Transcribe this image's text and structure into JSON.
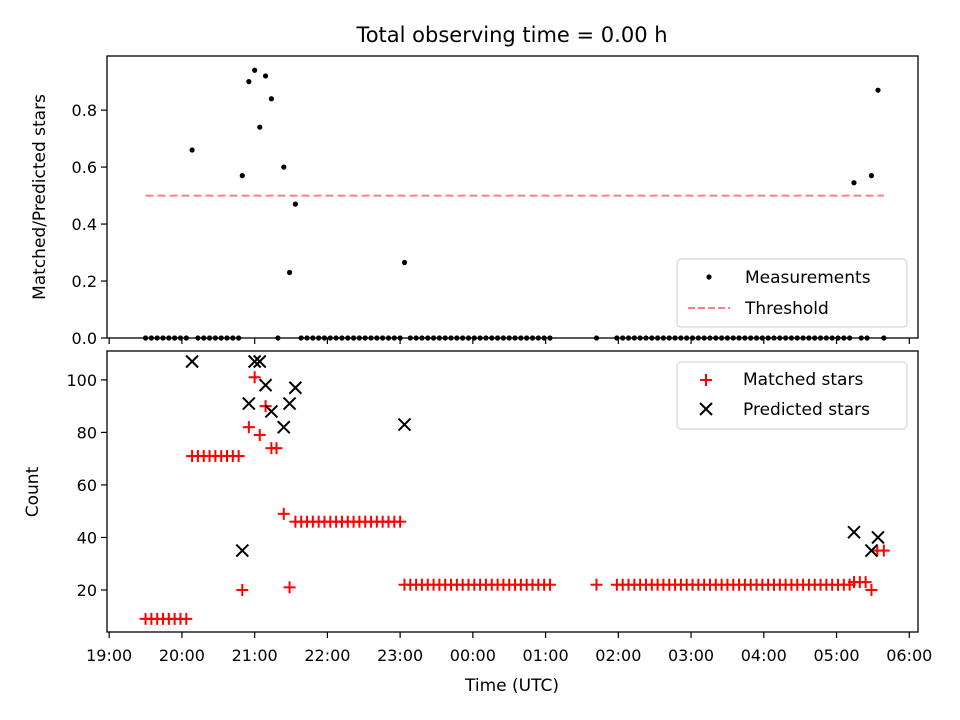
{
  "figure": {
    "title": "Total observing time = 0.00 h"
  },
  "chart_data": [
    {
      "type": "scatter",
      "ylabel": "Matched/Predicted stars",
      "xlim_hours": [
        18.97,
        30.12
      ],
      "ylim": [
        0.0,
        0.99
      ],
      "yticks": [
        0.0,
        0.2,
        0.4,
        0.6,
        0.8
      ],
      "ytick_labels": [
        "0.0",
        "0.2",
        "0.4",
        "0.6",
        "0.8"
      ],
      "legend_position": "lower-right",
      "series": [
        {
          "name": "Measurements",
          "marker": "dot",
          "color": "#000000",
          "points": [
            [
              19.5,
              0
            ],
            [
              19.58,
              0
            ],
            [
              19.66,
              0
            ],
            [
              19.74,
              0
            ],
            [
              19.82,
              0
            ],
            [
              19.9,
              0
            ],
            [
              19.98,
              0
            ],
            [
              20.06,
              0
            ],
            [
              20.14,
              0.66
            ],
            [
              20.22,
              0
            ],
            [
              20.3,
              0
            ],
            [
              20.38,
              0
            ],
            [
              20.46,
              0
            ],
            [
              20.54,
              0
            ],
            [
              20.62,
              0
            ],
            [
              20.7,
              0
            ],
            [
              20.78,
              0
            ],
            [
              20.83,
              0.57
            ],
            [
              20.92,
              0.9
            ],
            [
              21.0,
              0.94
            ],
            [
              21.07,
              0.74
            ],
            [
              21.15,
              0.92
            ],
            [
              21.23,
              0.84
            ],
            [
              21.32,
              0
            ],
            [
              21.4,
              0.6
            ],
            [
              21.48,
              0.23
            ],
            [
              21.56,
              0.47
            ],
            [
              21.64,
              0
            ],
            [
              21.72,
              0
            ],
            [
              21.8,
              0
            ],
            [
              21.88,
              0
            ],
            [
              21.96,
              0
            ],
            [
              22.04,
              0
            ],
            [
              22.12,
              0
            ],
            [
              22.2,
              0
            ],
            [
              22.28,
              0
            ],
            [
              22.36,
              0
            ],
            [
              22.44,
              0
            ],
            [
              22.52,
              0
            ],
            [
              22.6,
              0
            ],
            [
              22.68,
              0
            ],
            [
              22.76,
              0
            ],
            [
              22.84,
              0
            ],
            [
              22.92,
              0
            ],
            [
              23.0,
              0
            ],
            [
              23.06,
              0.265
            ],
            [
              23.14,
              0
            ],
            [
              23.22,
              0
            ],
            [
              23.3,
              0
            ],
            [
              23.38,
              0
            ],
            [
              23.46,
              0
            ],
            [
              23.54,
              0
            ],
            [
              23.62,
              0
            ],
            [
              23.7,
              0
            ],
            [
              23.78,
              0
            ],
            [
              23.86,
              0
            ],
            [
              23.94,
              0
            ],
            [
              24.02,
              0
            ],
            [
              24.1,
              0
            ],
            [
              24.18,
              0
            ],
            [
              24.26,
              0
            ],
            [
              24.34,
              0
            ],
            [
              24.42,
              0
            ],
            [
              24.5,
              0
            ],
            [
              24.58,
              0
            ],
            [
              24.66,
              0
            ],
            [
              24.74,
              0
            ],
            [
              24.82,
              0
            ],
            [
              24.9,
              0
            ],
            [
              24.98,
              0
            ],
            [
              25.06,
              0
            ],
            [
              25.7,
              0
            ],
            [
              25.98,
              0
            ],
            [
              26.06,
              0
            ],
            [
              26.14,
              0
            ],
            [
              26.22,
              0
            ],
            [
              26.3,
              0
            ],
            [
              26.38,
              0
            ],
            [
              26.46,
              0
            ],
            [
              26.54,
              0
            ],
            [
              26.62,
              0
            ],
            [
              26.7,
              0
            ],
            [
              26.78,
              0
            ],
            [
              26.86,
              0
            ],
            [
              26.94,
              0
            ],
            [
              27.02,
              0
            ],
            [
              27.1,
              0
            ],
            [
              27.18,
              0
            ],
            [
              27.26,
              0
            ],
            [
              27.34,
              0
            ],
            [
              27.42,
              0
            ],
            [
              27.5,
              0
            ],
            [
              27.58,
              0
            ],
            [
              27.66,
              0
            ],
            [
              27.74,
              0
            ],
            [
              27.82,
              0
            ],
            [
              27.9,
              0
            ],
            [
              27.98,
              0
            ],
            [
              28.06,
              0
            ],
            [
              28.14,
              0
            ],
            [
              28.22,
              0
            ],
            [
              28.3,
              0
            ],
            [
              28.38,
              0
            ],
            [
              28.46,
              0
            ],
            [
              28.54,
              0
            ],
            [
              28.62,
              0
            ],
            [
              28.7,
              0
            ],
            [
              28.78,
              0
            ],
            [
              28.86,
              0
            ],
            [
              28.94,
              0
            ],
            [
              29.02,
              0
            ],
            [
              29.1,
              0
            ],
            [
              29.18,
              0
            ],
            [
              29.24,
              0.545
            ],
            [
              29.34,
              0
            ],
            [
              29.42,
              0
            ],
            [
              29.48,
              0.57
            ],
            [
              29.57,
              0.87
            ],
            [
              29.65,
              0
            ]
          ]
        },
        {
          "name": "Threshold",
          "marker": "dashed-line",
          "color": "#ff7f7f",
          "points": [
            [
              19.5,
              0.5
            ],
            [
              29.65,
              0.5
            ]
          ]
        }
      ]
    },
    {
      "type": "scatter",
      "xlabel": "Time (UTC)",
      "ylabel": "Count",
      "xlim_hours": [
        18.97,
        30.12
      ],
      "ylim": [
        4,
        111
      ],
      "yticks": [
        20,
        40,
        60,
        80,
        100
      ],
      "ytick_labels": [
        "20",
        "40",
        "60",
        "80",
        "100"
      ],
      "xticks_hours": [
        19,
        20,
        21,
        22,
        23,
        24,
        25,
        26,
        27,
        28,
        29,
        30
      ],
      "xtick_labels": [
        "19:00",
        "20:00",
        "21:00",
        "22:00",
        "23:00",
        "00:00",
        "01:00",
        "02:00",
        "03:00",
        "04:00",
        "05:00",
        "06:00"
      ],
      "legend_position": "upper-right",
      "series": [
        {
          "name": "Matched stars",
          "marker": "plus",
          "color": "#ff0000",
          "points": [
            [
              19.5,
              9
            ],
            [
              19.58,
              9
            ],
            [
              19.66,
              9
            ],
            [
              19.74,
              9
            ],
            [
              19.82,
              9
            ],
            [
              19.9,
              9
            ],
            [
              19.98,
              9
            ],
            [
              20.06,
              9
            ],
            [
              20.14,
              71
            ],
            [
              20.22,
              71
            ],
            [
              20.3,
              71
            ],
            [
              20.38,
              71
            ],
            [
              20.46,
              71
            ],
            [
              20.54,
              71
            ],
            [
              20.62,
              71
            ],
            [
              20.7,
              71
            ],
            [
              20.78,
              71
            ],
            [
              20.83,
              20
            ],
            [
              20.92,
              82
            ],
            [
              21.0,
              101
            ],
            [
              21.07,
              79
            ],
            [
              21.15,
              90
            ],
            [
              21.23,
              74
            ],
            [
              21.3,
              74
            ],
            [
              21.4,
              49
            ],
            [
              21.48,
              21
            ],
            [
              21.56,
              46
            ],
            [
              21.64,
              46
            ],
            [
              21.72,
              46
            ],
            [
              21.8,
              46
            ],
            [
              21.88,
              46
            ],
            [
              21.96,
              46
            ],
            [
              22.04,
              46
            ],
            [
              22.12,
              46
            ],
            [
              22.2,
              46
            ],
            [
              22.28,
              46
            ],
            [
              22.36,
              46
            ],
            [
              22.44,
              46
            ],
            [
              22.52,
              46
            ],
            [
              22.6,
              46
            ],
            [
              22.68,
              46
            ],
            [
              22.76,
              46
            ],
            [
              22.84,
              46
            ],
            [
              22.92,
              46
            ],
            [
              23.0,
              46
            ],
            [
              23.06,
              22
            ],
            [
              23.14,
              22
            ],
            [
              23.22,
              22
            ],
            [
              23.3,
              22
            ],
            [
              23.38,
              22
            ],
            [
              23.46,
              22
            ],
            [
              23.54,
              22
            ],
            [
              23.62,
              22
            ],
            [
              23.7,
              22
            ],
            [
              23.78,
              22
            ],
            [
              23.86,
              22
            ],
            [
              23.94,
              22
            ],
            [
              24.02,
              22
            ],
            [
              24.1,
              22
            ],
            [
              24.18,
              22
            ],
            [
              24.26,
              22
            ],
            [
              24.34,
              22
            ],
            [
              24.42,
              22
            ],
            [
              24.5,
              22
            ],
            [
              24.58,
              22
            ],
            [
              24.66,
              22
            ],
            [
              24.74,
              22
            ],
            [
              24.82,
              22
            ],
            [
              24.9,
              22
            ],
            [
              24.98,
              22
            ],
            [
              25.06,
              22
            ],
            [
              25.7,
              22
            ],
            [
              25.98,
              22
            ],
            [
              26.06,
              22
            ],
            [
              26.14,
              22
            ],
            [
              26.22,
              22
            ],
            [
              26.3,
              22
            ],
            [
              26.38,
              22
            ],
            [
              26.46,
              22
            ],
            [
              26.54,
              22
            ],
            [
              26.62,
              22
            ],
            [
              26.7,
              22
            ],
            [
              26.78,
              22
            ],
            [
              26.86,
              22
            ],
            [
              26.94,
              22
            ],
            [
              27.02,
              22
            ],
            [
              27.1,
              22
            ],
            [
              27.18,
              22
            ],
            [
              27.26,
              22
            ],
            [
              27.34,
              22
            ],
            [
              27.42,
              22
            ],
            [
              27.5,
              22
            ],
            [
              27.58,
              22
            ],
            [
              27.66,
              22
            ],
            [
              27.74,
              22
            ],
            [
              27.82,
              22
            ],
            [
              27.9,
              22
            ],
            [
              27.98,
              22
            ],
            [
              28.06,
              22
            ],
            [
              28.14,
              22
            ],
            [
              28.22,
              22
            ],
            [
              28.3,
              22
            ],
            [
              28.38,
              22
            ],
            [
              28.46,
              22
            ],
            [
              28.54,
              22
            ],
            [
              28.62,
              22
            ],
            [
              28.7,
              22
            ],
            [
              28.78,
              22
            ],
            [
              28.86,
              22
            ],
            [
              28.94,
              22
            ],
            [
              29.02,
              22
            ],
            [
              29.1,
              22
            ],
            [
              29.18,
              22
            ],
            [
              29.24,
              23
            ],
            [
              29.32,
              23
            ],
            [
              29.4,
              23
            ],
            [
              29.48,
              20
            ],
            [
              29.56,
              35
            ],
            [
              29.65,
              35
            ]
          ]
        },
        {
          "name": "Predicted stars",
          "marker": "x",
          "color": "#000000",
          "points": [
            [
              20.14,
              107
            ],
            [
              20.83,
              35
            ],
            [
              20.92,
              91
            ],
            [
              21.0,
              107
            ],
            [
              21.07,
              107
            ],
            [
              21.15,
              98
            ],
            [
              21.23,
              88
            ],
            [
              21.4,
              82
            ],
            [
              21.48,
              91
            ],
            [
              21.56,
              97
            ],
            [
              23.06,
              83
            ],
            [
              29.24,
              42
            ],
            [
              29.48,
              35
            ],
            [
              29.57,
              40
            ]
          ]
        }
      ]
    }
  ]
}
